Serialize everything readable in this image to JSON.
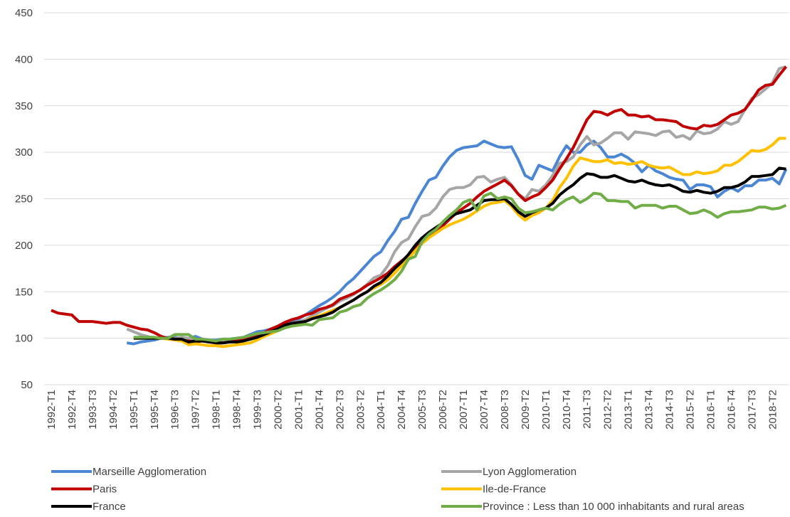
{
  "chart_data": {
    "type": "line",
    "categories": [
      "1992-T1",
      null,
      null,
      "1992-T4",
      null,
      null,
      "1993-T3",
      null,
      null,
      "1994-T2",
      null,
      null,
      "1995-T1",
      null,
      null,
      "1995-T4",
      null,
      null,
      "1996-T3",
      null,
      null,
      "1997-T2",
      null,
      null,
      "1998-T1",
      null,
      null,
      "1998-T4",
      null,
      null,
      "1999-T3",
      null,
      null,
      "2000-T2",
      null,
      null,
      "2001-T1",
      null,
      null,
      "2001-T4",
      null,
      null,
      "2002-T3",
      null,
      null,
      "2003-T2",
      null,
      null,
      "2004-T1",
      null,
      null,
      "2004-T4",
      null,
      null,
      "2005-T3",
      null,
      null,
      "2006-T2",
      null,
      null,
      "2007-T1",
      null,
      null,
      "2007-T4",
      null,
      null,
      "2008-T3",
      null,
      null,
      "2009-T2",
      null,
      null,
      "2010-T1",
      null,
      null,
      "2010-T4",
      null,
      null,
      "2011-T3",
      null,
      null,
      "2012-T2",
      null,
      null,
      "2013-T1",
      null,
      null,
      "2013-T4",
      null,
      null,
      "2014-T3",
      null,
      null,
      "2015-T2",
      null,
      null,
      "2016-T1",
      null,
      null,
      "2016-T4",
      null,
      null,
      "2017-T3",
      null,
      null,
      "2018-T2",
      null,
      null
    ],
    "ylim": [
      50,
      450
    ],
    "yticks": [
      50,
      100,
      150,
      200,
      250,
      300,
      350,
      400,
      450
    ],
    "grid": true,
    "series": [
      {
        "name": "Marseille Agglomeration",
        "color": "#4a86d4",
        "values": [
          null,
          null,
          null,
          null,
          null,
          null,
          null,
          null,
          null,
          null,
          null,
          95,
          94,
          96,
          97,
          98,
          100,
          101,
          101,
          100,
          100,
          102,
          99,
          98,
          98,
          99,
          99,
          100,
          101,
          104,
          107,
          108,
          110,
          113,
          116,
          118,
          121,
          125,
          130,
          135,
          139,
          144,
          150,
          158,
          164,
          172,
          180,
          188,
          193,
          205,
          215,
          228,
          230,
          245,
          258,
          270,
          273,
          285,
          295,
          302,
          305,
          306,
          307,
          312,
          309,
          306,
          305,
          306,
          292,
          275,
          271,
          286,
          283,
          280,
          295,
          307,
          300,
          300,
          308,
          312,
          305,
          295,
          295,
          298,
          294,
          288,
          279,
          286,
          280,
          277,
          273,
          271,
          270,
          260,
          265,
          265,
          263,
          252,
          258,
          262,
          258,
          264,
          264,
          270,
          270,
          272,
          266,
          282
        ]
      },
      {
        "name": "Lyon Agglomeration",
        "color": "#a6a6a6",
        "values": [
          null,
          null,
          null,
          null,
          null,
          null,
          null,
          null,
          null,
          null,
          null,
          110,
          107,
          104,
          102,
          100,
          100,
          100,
          100,
          101,
          100,
          99,
          98,
          98,
          97,
          98,
          98,
          99,
          100,
          102,
          104,
          105,
          107,
          110,
          113,
          116,
          118,
          120,
          124,
          128,
          132,
          135,
          140,
          143,
          147,
          152,
          158,
          165,
          168,
          178,
          193,
          203,
          207,
          220,
          231,
          233,
          240,
          252,
          260,
          262,
          262,
          265,
          273,
          274,
          268,
          271,
          273,
          265,
          255,
          250,
          260,
          258,
          265,
          275,
          288,
          290,
          295,
          308,
          317,
          308,
          310,
          315,
          321,
          321,
          314,
          322,
          321,
          320,
          318,
          322,
          323,
          316,
          318,
          314,
          323,
          320,
          321,
          325,
          333,
          330,
          333,
          346,
          358,
          362,
          368,
          375,
          390,
          392
        ]
      },
      {
        "name": "Paris",
        "color": "#c00000",
        "values": [
          130,
          127,
          126,
          125,
          118,
          118,
          118,
          117,
          116,
          117,
          117,
          114,
          112,
          110,
          109,
          106,
          102,
          100,
          99,
          98,
          97,
          96,
          97,
          96,
          95,
          95,
          96,
          97,
          98,
          100,
          103,
          106,
          110,
          113,
          117,
          120,
          122,
          125,
          127,
          131,
          133,
          136,
          142,
          145,
          148,
          152,
          157,
          161,
          165,
          170,
          177,
          183,
          189,
          196,
          203,
          210,
          215,
          221,
          228,
          235,
          240,
          245,
          252,
          258,
          262,
          266,
          270,
          264,
          255,
          248,
          252,
          255,
          262,
          270,
          282,
          293,
          305,
          320,
          335,
          344,
          343,
          340,
          344,
          346,
          340,
          340,
          338,
          339,
          335,
          335,
          334,
          333,
          328,
          326,
          325,
          329,
          328,
          330,
          335,
          340,
          342,
          346,
          356,
          367,
          372,
          373,
          383,
          392
        ]
      },
      {
        "name": "Ile-de-France",
        "color": "#ffc000",
        "values": [
          null,
          null,
          null,
          null,
          null,
          null,
          null,
          null,
          null,
          null,
          null,
          null,
          101,
          100,
          100,
          100,
          100,
          99,
          98,
          97,
          93,
          94,
          93,
          92,
          92,
          91,
          92,
          93,
          94,
          95,
          98,
          102,
          105,
          108,
          112,
          114,
          115,
          118,
          122,
          124,
          127,
          130,
          133,
          137,
          141,
          146,
          150,
          154,
          158,
          163,
          170,
          178,
          186,
          194,
          202,
          208,
          213,
          218,
          222,
          225,
          228,
          232,
          237,
          242,
          245,
          246,
          248,
          242,
          233,
          227,
          232,
          235,
          240,
          248,
          262,
          272,
          285,
          294,
          292,
          290,
          290,
          292,
          288,
          289,
          287,
          288,
          290,
          286,
          284,
          283,
          284,
          280,
          276,
          276,
          279,
          277,
          278,
          280,
          286,
          286,
          290,
          296,
          302,
          301,
          303,
          308,
          315,
          315
        ]
      },
      {
        "name": "France",
        "color": "#000000",
        "values": [
          null,
          null,
          null,
          null,
          null,
          null,
          null,
          null,
          null,
          null,
          null,
          null,
          100,
          100,
          100,
          100,
          100,
          100,
          99,
          99,
          96,
          97,
          97,
          96,
          95,
          95,
          96,
          96,
          97,
          99,
          101,
          104,
          107,
          110,
          114,
          116,
          117,
          118,
          121,
          123,
          125,
          128,
          133,
          137,
          141,
          146,
          150,
          156,
          160,
          167,
          175,
          182,
          190,
          200,
          208,
          214,
          219,
          224,
          230,
          234,
          236,
          238,
          243,
          248,
          249,
          249,
          250,
          244,
          236,
          231,
          235,
          238,
          240,
          245,
          254,
          260,
          265,
          272,
          277,
          276,
          273,
          273,
          275,
          272,
          269,
          268,
          270,
          267,
          265,
          264,
          265,
          262,
          258,
          257,
          259,
          257,
          256,
          258,
          262,
          262,
          264,
          268,
          274,
          274,
          275,
          276,
          283,
          282
        ]
      },
      {
        "name": "Province : Less than 10 000 inhabitants and rural areas",
        "color": "#70ad47",
        "values": [
          null,
          null,
          null,
          null,
          null,
          null,
          null,
          null,
          null,
          null,
          null,
          null,
          101,
          101,
          101,
          101,
          100,
          100,
          104,
          104,
          104,
          99,
          99,
          98,
          97,
          99,
          99,
          100,
          101,
          103,
          105,
          106,
          107,
          108,
          111,
          113,
          114,
          115,
          114,
          120,
          121,
          122,
          128,
          130,
          134,
          136,
          143,
          148,
          152,
          157,
          163,
          172,
          185,
          188,
          204,
          212,
          217,
          225,
          232,
          238,
          246,
          249,
          238,
          253,
          256,
          250,
          252,
          250,
          240,
          235,
          236,
          238,
          240,
          238,
          244,
          249,
          252,
          246,
          250,
          256,
          255,
          248,
          248,
          247,
          247,
          240,
          243,
          243,
          243,
          240,
          242,
          242,
          238,
          234,
          235,
          238,
          235,
          230,
          234,
          236,
          236,
          237,
          238,
          241,
          241,
          239,
          240,
          243
        ]
      }
    ]
  }
}
